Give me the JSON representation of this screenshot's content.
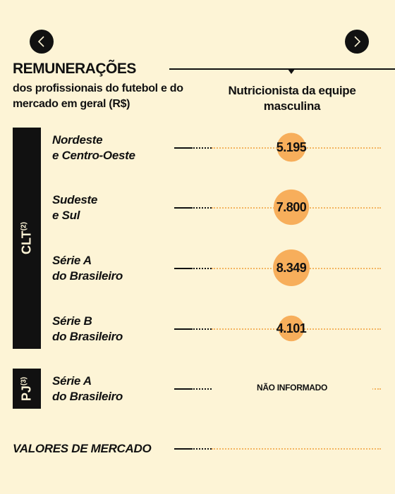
{
  "nav": {
    "prev_icon": "chevron-left-icon",
    "next_icon": "chevron-right-icon"
  },
  "title": "REMUNERAÇÕES",
  "subtitle": "dos profissionais do futebol e do mercado em geral (R$)",
  "column_header": "Nutricionista da equipe masculina",
  "groups": [
    {
      "label": "CLT",
      "note": "(2)"
    },
    {
      "label": "PJ",
      "note": "(3)"
    }
  ],
  "rows": [
    {
      "line1": "Nordeste",
      "line2": "e Centro-Oeste"
    },
    {
      "line1": "Sudeste",
      "line2": "e Sul"
    },
    {
      "line1": "Série A",
      "line2": "do Brasileiro"
    },
    {
      "line1": "Série B",
      "line2": "do Brasileiro"
    },
    {
      "line1": "Série A",
      "line2": "do Brasileiro"
    }
  ],
  "market_label": "VALORES DE MERCADO",
  "not_informed_label": "NÃO INFORMADO",
  "chart_data": {
    "type": "bubble",
    "column": "Nutricionista da equipe masculina",
    "categories": [
      "Nordeste e Centro-Oeste",
      "Sudeste e Sul",
      "Série A do Brasileiro",
      "Série B do Brasileiro",
      "Série A do Brasileiro",
      "VALORES DE MERCADO"
    ],
    "values": [
      5195,
      7800,
      8349,
      4101,
      null,
      null
    ],
    "value_labels": [
      "5.195",
      "7.800",
      "8.349",
      "4.101",
      "NÃO INFORMADO",
      ""
    ],
    "bubble_color": "#f7ae5b"
  },
  "colors": {
    "background": "#fdf4d6",
    "bubble": "#f7ae5b",
    "dots": "#f3b460",
    "ink": "#111111"
  }
}
